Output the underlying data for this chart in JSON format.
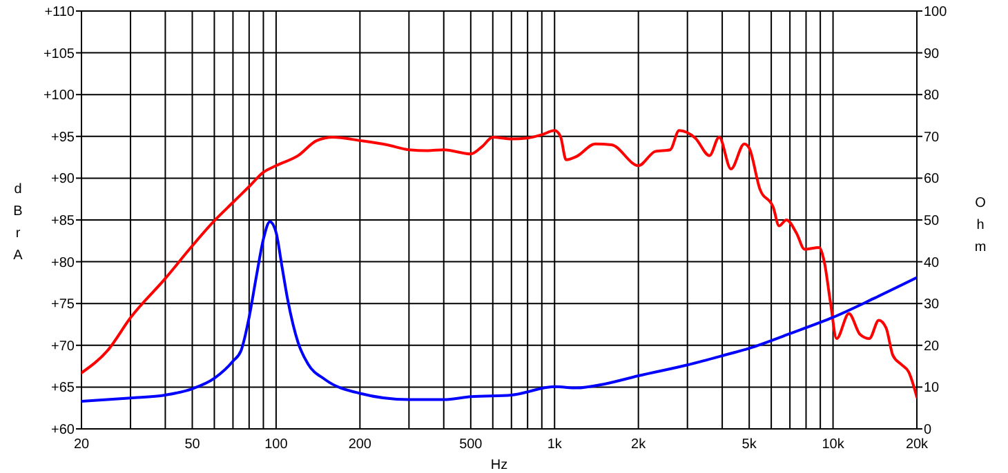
{
  "chart_data": {
    "type": "line",
    "xlabel": "Hz",
    "ylabel": "dBrA",
    "y2label": "Ohm",
    "log": "x",
    "grid": true,
    "xlim": [
      20,
      20000
    ],
    "ylim": [
      60,
      110
    ],
    "y2lim": [
      0,
      100
    ],
    "xticks": [
      20,
      {
        "value": 30,
        "label": null
      },
      {
        "value": 40,
        "label": null
      },
      50,
      {
        "value": 60,
        "label": null
      },
      {
        "value": 70,
        "label": null
      },
      {
        "value": 80,
        "label": null
      },
      {
        "value": 90,
        "label": null
      },
      100,
      200,
      {
        "value": 300,
        "label": null
      },
      {
        "value": 400,
        "label": null
      },
      500,
      {
        "value": 600,
        "label": null
      },
      {
        "value": 700,
        "label": null
      },
      {
        "value": 800,
        "label": null
      },
      {
        "value": 900,
        "label": null
      },
      {
        "value": 1000,
        "label": "1k"
      },
      {
        "value": 2000,
        "label": "2k"
      },
      {
        "value": 3000,
        "label": null
      },
      {
        "value": 4000,
        "label": null
      },
      {
        "value": 5000,
        "label": "5k"
      },
      {
        "value": 6000,
        "label": null
      },
      {
        "value": 7000,
        "label": null
      },
      {
        "value": 8000,
        "label": null
      },
      {
        "value": 9000,
        "label": null
      },
      {
        "value": 10000,
        "label": "10k"
      },
      {
        "value": 20000,
        "label": "20k"
      }
    ],
    "yticks": [
      {
        "value": 60,
        "label": "+60"
      },
      {
        "value": 65,
        "label": "+65"
      },
      {
        "value": 70,
        "label": "+70"
      },
      {
        "value": 75,
        "label": "+75"
      },
      {
        "value": 80,
        "label": "+80"
      },
      {
        "value": 85,
        "label": "+85"
      },
      {
        "value": 90,
        "label": "+90"
      },
      {
        "value": 95,
        "label": "+95"
      },
      {
        "value": 100,
        "label": "+100"
      },
      {
        "value": 105,
        "label": "+105"
      },
      {
        "value": 110,
        "label": "+110"
      }
    ],
    "y2ticks": [
      0,
      10,
      20,
      30,
      40,
      50,
      60,
      70,
      80,
      90,
      100
    ],
    "series": [
      {
        "color": "#ff0000",
        "x": [
          20,
          25,
          30,
          40,
          50,
          60,
          70,
          80,
          90,
          100,
          120,
          140,
          160,
          200,
          250,
          300,
          350,
          400,
          500,
          550,
          600,
          700,
          800,
          900,
          1000,
          1050,
          1100,
          1200,
          1400,
          1600,
          2000,
          2300,
          2600,
          2800,
          3200,
          3600,
          3900,
          4300,
          4800,
          5000,
          5460,
          6100,
          6400,
          6800,
          7400,
          7900,
          8900,
          9300,
          9800,
          10300,
          11400,
          12500,
          13500,
          14600,
          15500,
          16400,
          17600,
          18700,
          20000
        ],
        "values": [
          66.7,
          69.5,
          73.3,
          78,
          81.9,
          84.9,
          87.1,
          89,
          90.7,
          91.5,
          92.7,
          94.5,
          94.9,
          94.5,
          94,
          93.4,
          93.3,
          93.4,
          92.9,
          93.8,
          94.9,
          94.7,
          94.8,
          95.2,
          95.7,
          95,
          92.2,
          92.6,
          94.1,
          94,
          91.5,
          93.2,
          93.4,
          95.7,
          94.8,
          92.7,
          94.9,
          91.1,
          94.1,
          93.6,
          88.7,
          86.5,
          84.3,
          85,
          83.4,
          81.5,
          81.7,
          80,
          75,
          70.8,
          73.8,
          71.3,
          70.8,
          73,
          72.1,
          68.8,
          67.7,
          66.8,
          63.8
        ]
      },
      {
        "color": "#0000ff",
        "axis": "y2",
        "x": [
          20,
          30,
          40,
          50,
          60,
          70,
          75,
          80,
          85,
          90,
          95,
          100,
          105,
          110,
          120,
          130,
          150,
          200,
          300,
          400,
          500,
          700,
          1000,
          1200,
          1500,
          2000,
          3000,
          4000,
          5000,
          7000,
          10000,
          14000,
          20000
        ],
        "values": [
          6.6,
          7.4,
          8.1,
          9.6,
          12.1,
          16.2,
          18.9,
          26.7,
          36.6,
          45.4,
          49.6,
          47,
          38.8,
          31,
          20.6,
          15.6,
          11.8,
          8.5,
          7,
          7,
          7.7,
          8.1,
          10.1,
          9.8,
          10.7,
          12.7,
          15.3,
          17.5,
          19.3,
          22.8,
          26.7,
          31.2,
          36.2
        ]
      }
    ]
  }
}
